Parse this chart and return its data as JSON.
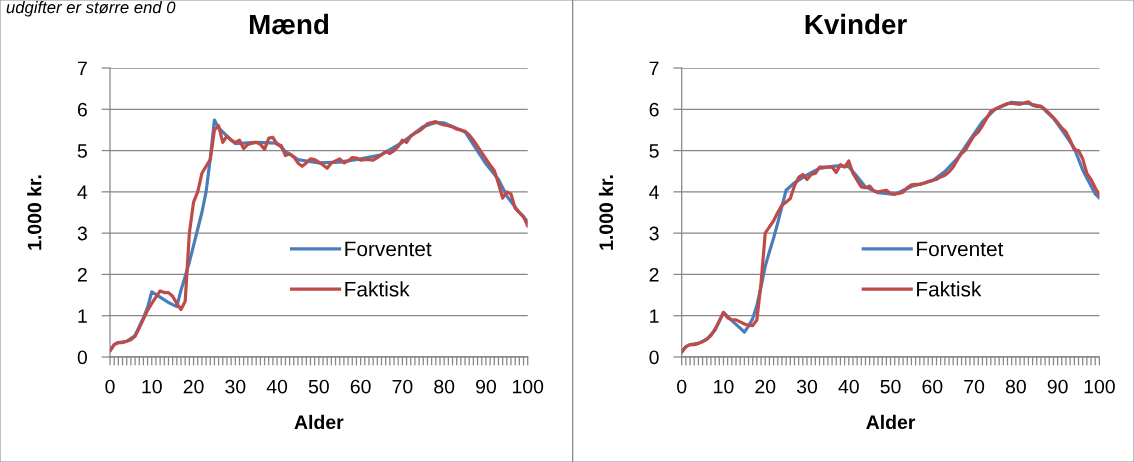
{
  "chart_data": [
    {
      "type": "line",
      "title": "Mænd",
      "xlabel": "Alder",
      "ylabel": "1.000 kr.",
      "annotations": [
        "udgifter er større end 0"
      ],
      "xlim": [
        0,
        100
      ],
      "ylim": [
        0,
        7
      ],
      "yticks": [
        0,
        1,
        2,
        3,
        4,
        5,
        6,
        7
      ],
      "xticks": [
        0,
        {
          "value": 1,
          "label": null
        },
        {
          "value": 2,
          "label": null
        },
        {
          "value": 3,
          "label": null
        },
        {
          "value": 4,
          "label": null
        },
        {
          "value": 5,
          "label": null
        },
        {
          "value": 6,
          "label": null
        },
        {
          "value": 7,
          "label": null
        },
        {
          "value": 8,
          "label": null
        },
        {
          "value": 9,
          "label": null
        },
        10,
        {
          "value": 11,
          "label": null
        },
        {
          "value": 12,
          "label": null
        },
        {
          "value": 13,
          "label": null
        },
        {
          "value": 14,
          "label": null
        },
        {
          "value": 15,
          "label": null
        },
        {
          "value": 16,
          "label": null
        },
        {
          "value": 17,
          "label": null
        },
        {
          "value": 18,
          "label": null
        },
        {
          "value": 19,
          "label": null
        },
        20,
        {
          "value": 21,
          "label": null
        },
        {
          "value": 22,
          "label": null
        },
        {
          "value": 23,
          "label": null
        },
        {
          "value": 24,
          "label": null
        },
        {
          "value": 25,
          "label": null
        },
        {
          "value": 26,
          "label": null
        },
        {
          "value": 27,
          "label": null
        },
        {
          "value": 28,
          "label": null
        },
        {
          "value": 29,
          "label": null
        },
        30,
        {
          "value": 31,
          "label": null
        },
        {
          "value": 32,
          "label": null
        },
        {
          "value": 33,
          "label": null
        },
        {
          "value": 34,
          "label": null
        },
        {
          "value": 35,
          "label": null
        },
        {
          "value": 36,
          "label": null
        },
        {
          "value": 37,
          "label": null
        },
        {
          "value": 38,
          "label": null
        },
        {
          "value": 39,
          "label": null
        },
        40,
        {
          "value": 41,
          "label": null
        },
        {
          "value": 42,
          "label": null
        },
        {
          "value": 43,
          "label": null
        },
        {
          "value": 44,
          "label": null
        },
        {
          "value": 45,
          "label": null
        },
        {
          "value": 46,
          "label": null
        },
        {
          "value": 47,
          "label": null
        },
        {
          "value": 48,
          "label": null
        },
        {
          "value": 49,
          "label": null
        },
        50,
        {
          "value": 51,
          "label": null
        },
        {
          "value": 52,
          "label": null
        },
        {
          "value": 53,
          "label": null
        },
        {
          "value": 54,
          "label": null
        },
        {
          "value": 55,
          "label": null
        },
        {
          "value": 56,
          "label": null
        },
        {
          "value": 57,
          "label": null
        },
        {
          "value": 58,
          "label": null
        },
        {
          "value": 59,
          "label": null
        },
        60,
        {
          "value": 61,
          "label": null
        },
        {
          "value": 62,
          "label": null
        },
        {
          "value": 63,
          "label": null
        },
        {
          "value": 64,
          "label": null
        },
        {
          "value": 65,
          "label": null
        },
        {
          "value": 66,
          "label": null
        },
        {
          "value": 67,
          "label": null
        },
        {
          "value": 68,
          "label": null
        },
        {
          "value": 69,
          "label": null
        },
        70,
        {
          "value": 71,
          "label": null
        },
        {
          "value": 72,
          "label": null
        },
        {
          "value": 73,
          "label": null
        },
        {
          "value": 74,
          "label": null
        },
        {
          "value": 75,
          "label": null
        },
        {
          "value": 76,
          "label": null
        },
        {
          "value": 77,
          "label": null
        },
        {
          "value": 78,
          "label": null
        },
        {
          "value": 79,
          "label": null
        },
        80,
        {
          "value": 81,
          "label": null
        },
        {
          "value": 82,
          "label": null
        },
        {
          "value": 83,
          "label": null
        },
        {
          "value": 84,
          "label": null
        },
        {
          "value": 85,
          "label": null
        },
        {
          "value": 86,
          "label": null
        },
        {
          "value": 87,
          "label": null
        },
        {
          "value": 88,
          "label": null
        },
        {
          "value": 89,
          "label": null
        },
        90,
        {
          "value": 91,
          "label": null
        },
        {
          "value": 92,
          "label": null
        },
        {
          "value": 93,
          "label": null
        },
        {
          "value": 94,
          "label": null
        },
        {
          "value": 95,
          "label": null
        },
        {
          "value": 96,
          "label": null
        },
        {
          "value": 97,
          "label": null
        },
        {
          "value": 98,
          "label": null
        },
        {
          "value": 99,
          "label": null
        },
        100
      ],
      "grid": "y",
      "legend": "lower right",
      "line_style": "solid",
      "series": [
        {
          "name": "Forventet",
          "color": "#4a7ebb",
          "x": [
            0,
            1,
            2,
            4,
            6,
            8,
            9,
            10,
            12,
            14,
            15,
            16,
            17,
            18,
            19,
            20,
            21,
            22,
            23,
            24,
            25,
            26,
            28,
            30,
            35,
            40,
            42,
            45,
            50,
            55,
            60,
            65,
            70,
            75,
            78,
            80,
            85,
            90,
            93,
            95,
            98,
            100
          ],
          "values": [
            0.15,
            0.3,
            0.35,
            0.38,
            0.52,
            0.95,
            1.2,
            1.58,
            1.45,
            1.32,
            1.27,
            1.22,
            1.62,
            1.95,
            2.3,
            2.7,
            3.1,
            3.5,
            4.0,
            4.8,
            5.74,
            5.55,
            5.35,
            5.17,
            5.2,
            5.18,
            4.98,
            4.78,
            4.7,
            4.72,
            4.8,
            4.9,
            5.2,
            5.58,
            5.68,
            5.67,
            5.45,
            4.68,
            4.3,
            3.9,
            3.5,
            3.28
          ]
        },
        {
          "name": "Faktisk",
          "color": "#be4b48",
          "x": [
            0,
            1,
            2,
            3,
            4,
            5,
            6,
            7,
            8,
            9,
            10,
            11,
            12,
            13,
            14,
            15,
            16,
            17,
            18,
            19,
            20,
            21,
            22,
            23,
            24,
            25,
            26,
            27,
            28,
            29,
            30,
            31,
            32,
            33,
            34,
            35,
            36,
            37,
            38,
            39,
            40,
            41,
            42,
            43,
            44,
            45,
            46,
            47,
            48,
            49,
            50,
            51,
            52,
            53,
            54,
            55,
            56,
            57,
            58,
            59,
            60,
            61,
            62,
            63,
            64,
            65,
            66,
            67,
            68,
            69,
            70,
            71,
            72,
            73,
            74,
            75,
            76,
            77,
            78,
            79,
            80,
            81,
            82,
            83,
            84,
            85,
            86,
            87,
            88,
            89,
            90,
            91,
            92,
            93,
            94,
            95,
            96,
            97,
            98,
            99,
            100
          ],
          "values": [
            0.15,
            0.3,
            0.35,
            0.35,
            0.38,
            0.42,
            0.5,
            0.7,
            0.92,
            1.13,
            1.3,
            1.45,
            1.6,
            1.56,
            1.56,
            1.47,
            1.3,
            1.15,
            1.35,
            3.0,
            3.75,
            4.0,
            4.45,
            4.62,
            4.78,
            5.5,
            5.6,
            5.2,
            5.35,
            5.25,
            5.2,
            5.25,
            5.05,
            5.15,
            5.18,
            5.2,
            5.15,
            5.03,
            5.3,
            5.32,
            5.15,
            5.12,
            4.88,
            4.92,
            4.85,
            4.7,
            4.62,
            4.7,
            4.8,
            4.78,
            4.72,
            4.65,
            4.57,
            4.7,
            4.75,
            4.8,
            4.7,
            4.75,
            4.83,
            4.82,
            4.77,
            4.78,
            4.78,
            4.77,
            4.83,
            4.9,
            4.98,
            4.93,
            5.0,
            5.1,
            5.25,
            5.2,
            5.35,
            5.42,
            5.47,
            5.55,
            5.65,
            5.68,
            5.7,
            5.65,
            5.62,
            5.6,
            5.57,
            5.52,
            5.5,
            5.47,
            5.38,
            5.25,
            5.1,
            4.95,
            4.8,
            4.65,
            4.52,
            4.2,
            3.85,
            4.0,
            3.95,
            3.6,
            3.5,
            3.4,
            3.17
          ]
        }
      ]
    },
    {
      "type": "line",
      "title": "Kvinder",
      "xlabel": "Alder",
      "ylabel": "1.000 kr.",
      "xlim": [
        0,
        100
      ],
      "ylim": [
        0,
        7
      ],
      "yticks": [
        0,
        1,
        2,
        3,
        4,
        5,
        6,
        7
      ],
      "xticks": [
        0,
        {
          "value": 1,
          "label": null
        },
        {
          "value": 2,
          "label": null
        },
        {
          "value": 3,
          "label": null
        },
        {
          "value": 4,
          "label": null
        },
        {
          "value": 5,
          "label": null
        },
        {
          "value": 6,
          "label": null
        },
        {
          "value": 7,
          "label": null
        },
        {
          "value": 8,
          "label": null
        },
        {
          "value": 9,
          "label": null
        },
        10,
        {
          "value": 11,
          "label": null
        },
        {
          "value": 12,
          "label": null
        },
        {
          "value": 13,
          "label": null
        },
        {
          "value": 14,
          "label": null
        },
        {
          "value": 15,
          "label": null
        },
        {
          "value": 16,
          "label": null
        },
        {
          "value": 17,
          "label": null
        },
        {
          "value": 18,
          "label": null
        },
        {
          "value": 19,
          "label": null
        },
        20,
        {
          "value": 21,
          "label": null
        },
        {
          "value": 22,
          "label": null
        },
        {
          "value": 23,
          "label": null
        },
        {
          "value": 24,
          "label": null
        },
        {
          "value": 25,
          "label": null
        },
        {
          "value": 26,
          "label": null
        },
        {
          "value": 27,
          "label": null
        },
        {
          "value": 28,
          "label": null
        },
        {
          "value": 29,
          "label": null
        },
        30,
        {
          "value": 31,
          "label": null
        },
        {
          "value": 32,
          "label": null
        },
        {
          "value": 33,
          "label": null
        },
        {
          "value": 34,
          "label": null
        },
        {
          "value": 35,
          "label": null
        },
        {
          "value": 36,
          "label": null
        },
        {
          "value": 37,
          "label": null
        },
        {
          "value": 38,
          "label": null
        },
        {
          "value": 39,
          "label": null
        },
        40,
        {
          "value": 41,
          "label": null
        },
        {
          "value": 42,
          "label": null
        },
        {
          "value": 43,
          "label": null
        },
        {
          "value": 44,
          "label": null
        },
        {
          "value": 45,
          "label": null
        },
        {
          "value": 46,
          "label": null
        },
        {
          "value": 47,
          "label": null
        },
        {
          "value": 48,
          "label": null
        },
        {
          "value": 49,
          "label": null
        },
        50,
        {
          "value": 51,
          "label": null
        },
        {
          "value": 52,
          "label": null
        },
        {
          "value": 53,
          "label": null
        },
        {
          "value": 54,
          "label": null
        },
        {
          "value": 55,
          "label": null
        },
        {
          "value": 56,
          "label": null
        },
        {
          "value": 57,
          "label": null
        },
        {
          "value": 58,
          "label": null
        },
        {
          "value": 59,
          "label": null
        },
        60,
        {
          "value": 61,
          "label": null
        },
        {
          "value": 62,
          "label": null
        },
        {
          "value": 63,
          "label": null
        },
        {
          "value": 64,
          "label": null
        },
        {
          "value": 65,
          "label": null
        },
        {
          "value": 66,
          "label": null
        },
        {
          "value": 67,
          "label": null
        },
        {
          "value": 68,
          "label": null
        },
        {
          "value": 69,
          "label": null
        },
        70,
        {
          "value": 71,
          "label": null
        },
        {
          "value": 72,
          "label": null
        },
        {
          "value": 73,
          "label": null
        },
        {
          "value": 74,
          "label": null
        },
        {
          "value": 75,
          "label": null
        },
        {
          "value": 76,
          "label": null
        },
        {
          "value": 77,
          "label": null
        },
        {
          "value": 78,
          "label": null
        },
        {
          "value": 79,
          "label": null
        },
        80,
        {
          "value": 81,
          "label": null
        },
        {
          "value": 82,
          "label": null
        },
        {
          "value": 83,
          "label": null
        },
        {
          "value": 84,
          "label": null
        },
        {
          "value": 85,
          "label": null
        },
        {
          "value": 86,
          "label": null
        },
        {
          "value": 87,
          "label": null
        },
        {
          "value": 88,
          "label": null
        },
        {
          "value": 89,
          "label": null
        },
        90,
        {
          "value": 91,
          "label": null
        },
        {
          "value": 92,
          "label": null
        },
        {
          "value": 93,
          "label": null
        },
        {
          "value": 94,
          "label": null
        },
        {
          "value": 95,
          "label": null
        },
        {
          "value": 96,
          "label": null
        },
        {
          "value": 97,
          "label": null
        },
        {
          "value": 98,
          "label": null
        },
        {
          "value": 99,
          "label": null
        },
        100
      ],
      "grid": "y",
      "legend": "lower right",
      "line_style": "solid",
      "series": [
        {
          "name": "Forventet",
          "color": "#4a7ebb",
          "x": [
            0,
            1,
            2,
            4,
            6,
            8,
            10,
            12,
            14,
            15,
            16,
            17,
            18,
            19,
            20,
            21,
            22,
            23,
            24,
            25,
            27,
            30,
            33,
            37,
            40,
            42,
            44,
            47,
            51,
            55,
            60,
            63,
            66,
            69,
            72,
            75,
            79,
            83,
            86,
            89,
            91,
            94,
            96,
            99,
            100
          ],
          "values": [
            0.12,
            0.25,
            0.3,
            0.33,
            0.43,
            0.65,
            1.08,
            0.88,
            0.7,
            0.6,
            0.75,
            0.93,
            1.25,
            1.7,
            2.2,
            2.55,
            2.88,
            3.25,
            3.65,
            4.04,
            4.22,
            4.41,
            4.57,
            4.63,
            4.61,
            4.37,
            4.12,
            3.98,
            3.94,
            4.13,
            4.27,
            4.49,
            4.81,
            5.26,
            5.7,
            6.0,
            6.17,
            6.14,
            6.07,
            5.78,
            5.5,
            5.06,
            4.53,
            3.95,
            3.85
          ]
        },
        {
          "name": "Faktisk",
          "color": "#be4b48",
          "x": [
            0,
            1,
            2,
            3,
            4,
            5,
            6,
            7,
            8,
            9,
            10,
            11,
            12,
            13,
            14,
            15,
            16,
            17,
            18,
            19,
            20,
            21,
            22,
            23,
            24,
            25,
            26,
            27,
            28,
            29,
            30,
            31,
            32,
            33,
            34,
            35,
            36,
            37,
            38,
            39,
            40,
            41,
            42,
            43,
            44,
            45,
            46,
            47,
            48,
            49,
            50,
            51,
            52,
            53,
            54,
            55,
            56,
            57,
            58,
            59,
            60,
            61,
            62,
            63,
            64,
            65,
            66,
            67,
            68,
            69,
            70,
            71,
            72,
            73,
            74,
            75,
            76,
            77,
            78,
            79,
            80,
            81,
            82,
            83,
            84,
            85,
            86,
            87,
            88,
            89,
            90,
            91,
            92,
            93,
            94,
            95,
            96,
            97,
            98,
            99,
            100
          ],
          "values": [
            0.12,
            0.25,
            0.3,
            0.3,
            0.33,
            0.37,
            0.43,
            0.52,
            0.68,
            0.87,
            1.08,
            0.95,
            0.9,
            0.9,
            0.85,
            0.8,
            0.77,
            0.76,
            0.9,
            1.8,
            3.0,
            3.15,
            3.3,
            3.5,
            3.68,
            3.75,
            3.84,
            4.15,
            4.35,
            4.42,
            4.3,
            4.42,
            4.45,
            4.6,
            4.6,
            4.6,
            4.6,
            4.47,
            4.66,
            4.6,
            4.75,
            4.45,
            4.28,
            4.12,
            4.1,
            4.14,
            4.02,
            4.0,
            4.02,
            4.04,
            3.96,
            3.95,
            3.96,
            3.99,
            4.1,
            4.17,
            4.18,
            4.18,
            4.21,
            4.25,
            4.28,
            4.3,
            4.36,
            4.4,
            4.48,
            4.6,
            4.78,
            4.93,
            5.02,
            5.2,
            5.36,
            5.45,
            5.6,
            5.78,
            5.95,
            6.0,
            6.05,
            6.1,
            6.14,
            6.15,
            6.13,
            6.12,
            6.15,
            6.18,
            6.1,
            6.07,
            6.07,
            6.0,
            5.9,
            5.8,
            5.68,
            5.55,
            5.45,
            5.25,
            5.02,
            5.0,
            4.8,
            4.45,
            4.3,
            4.1,
            3.92
          ]
        }
      ]
    }
  ]
}
